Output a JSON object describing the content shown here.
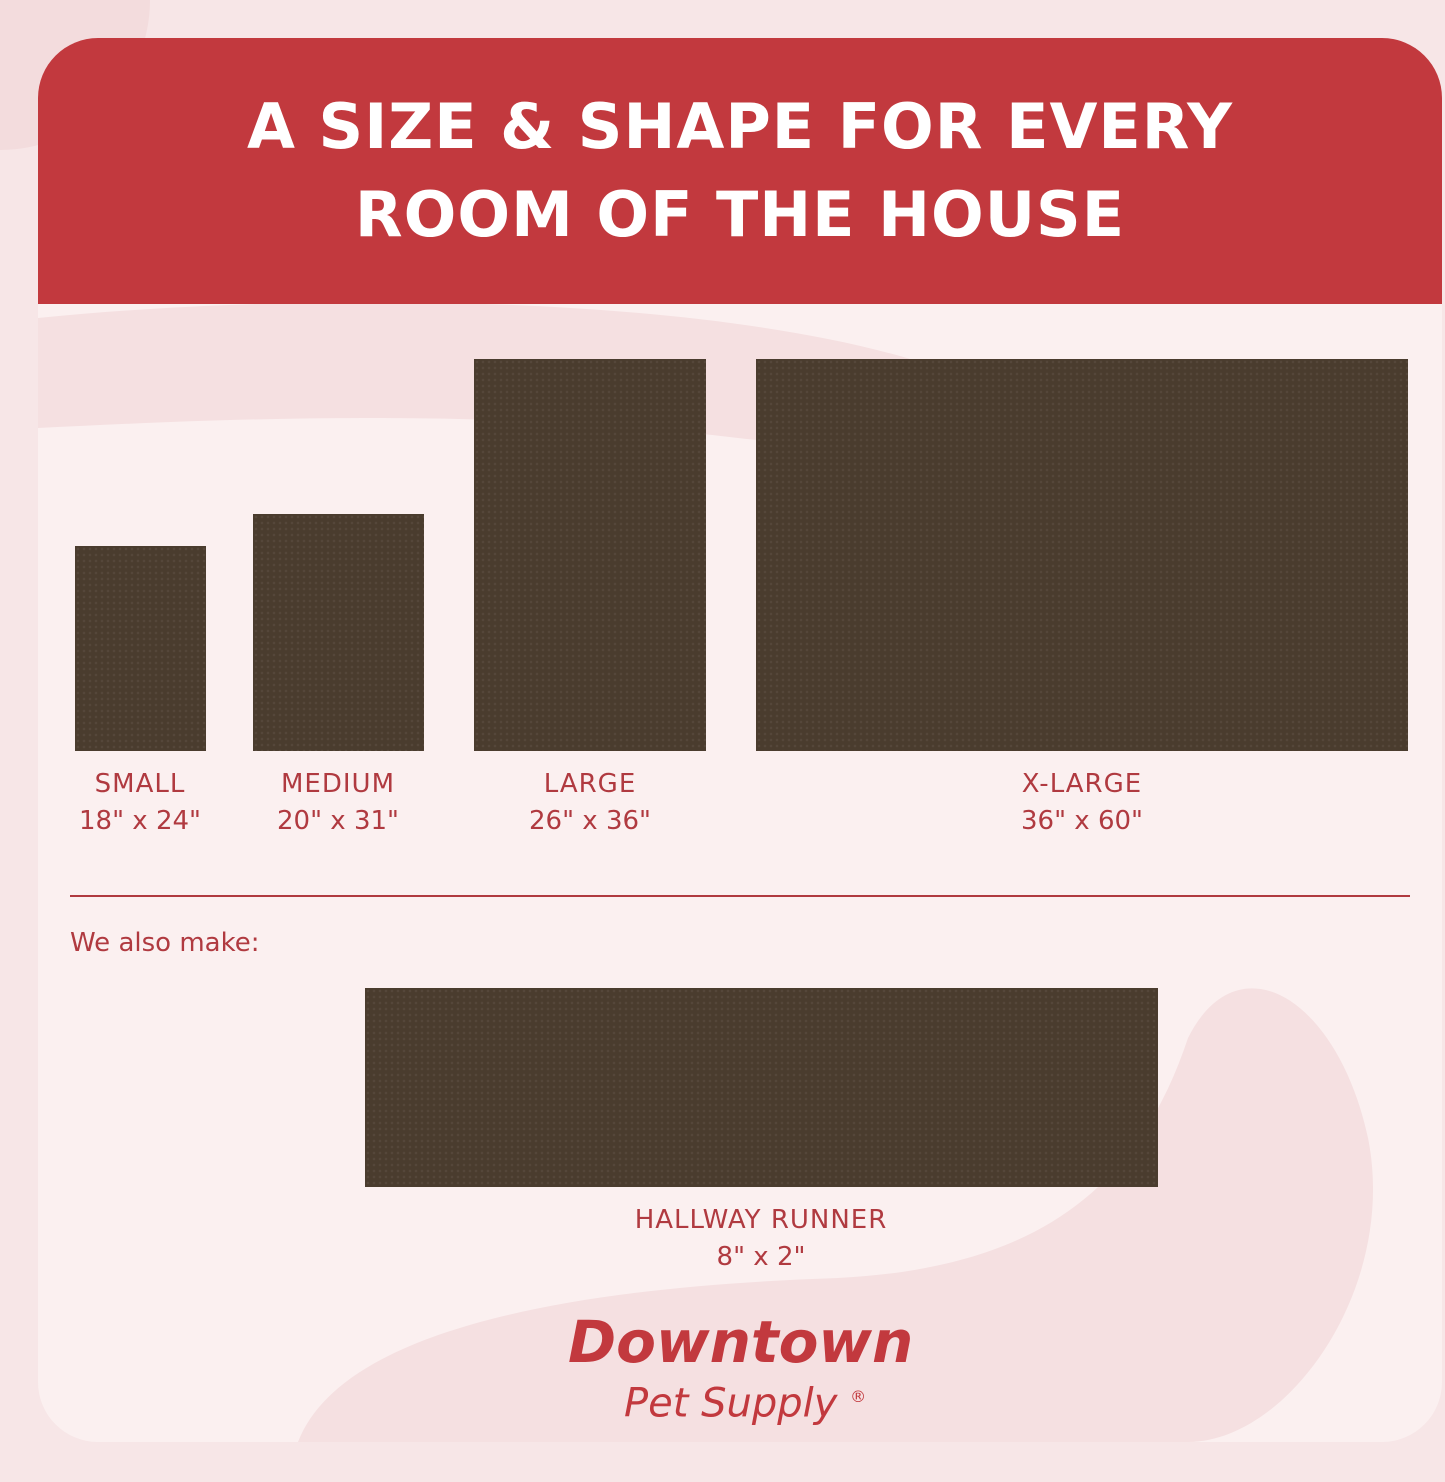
{
  "header": {
    "title_line1": "A SIZE & SHAPE FOR EVERY",
    "title_line2": "ROOM OF THE HOUSE"
  },
  "sizes": [
    {
      "name": "SMALL",
      "dims": "18\" x 24\""
    },
    {
      "name": "MEDIUM",
      "dims": "20\" x 31\""
    },
    {
      "name": "LARGE",
      "dims": "26\" x 36\""
    },
    {
      "name": "X-LARGE",
      "dims": "36\" x 60\""
    }
  ],
  "also": {
    "label": "We also make:",
    "item": {
      "name": "HALLWAY RUNNER",
      "dims": "8\" x 2\""
    }
  },
  "brand": {
    "line1": "Downtown",
    "line2": "Pet Supply",
    "mark": "®"
  },
  "colors": {
    "header": "#c2393e",
    "text": "#b03a40",
    "mat": "#4a3c2e",
    "background": "#fbf0f0"
  }
}
